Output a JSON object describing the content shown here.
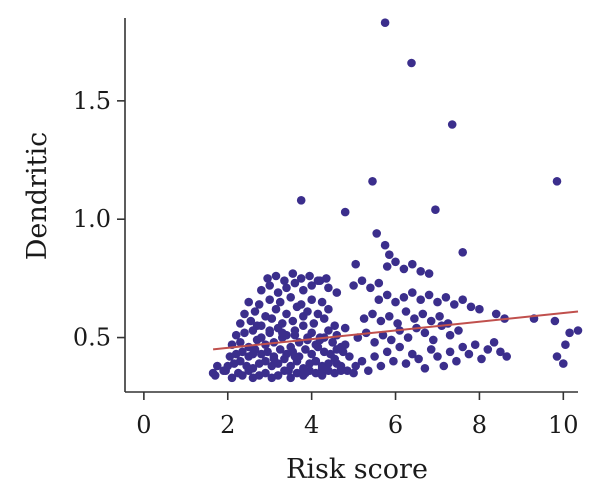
{
  "chart_data": {
    "type": "scatter",
    "xlabel": "Risk score",
    "ylabel": "Dendritic",
    "xlim": [
      -0.45,
      10.35
    ],
    "ylim": [
      0.27,
      1.85
    ],
    "x_ticks": [
      0,
      2,
      4,
      6,
      8,
      10
    ],
    "x_tick_labels": [
      "0",
      "2",
      "4",
      "6",
      "8",
      "10"
    ],
    "y_ticks": [
      0.5,
      1.0,
      1.5
    ],
    "y_tick_labels": [
      "0.5",
      "1.0",
      "1.5"
    ],
    "grid": false,
    "colors": {
      "points": "#3b2e8c",
      "trend_line": "#c0504d",
      "axis": "#333333"
    },
    "trend_line": {
      "x": [
        1.65,
        10.35
      ],
      "y": [
        0.45,
        0.61
      ]
    },
    "series": [
      {
        "x": [
          1.65,
          1.7,
          1.95,
          2.1,
          2.25,
          2.35,
          2.5,
          2.6,
          2.75,
          2.9,
          3.05,
          3.2,
          3.35,
          3.5,
          3.65,
          3.8,
          3.95,
          4.1,
          4.25,
          4.4,
          4.55,
          4.7,
          4.85,
          5.0,
          2.0,
          2.15,
          2.3,
          2.45,
          2.6,
          2.75,
          2.9,
          3.05,
          3.2,
          3.35,
          3.5,
          3.65,
          3.8,
          3.95,
          4.1,
          4.25,
          4.4,
          4.55,
          4.7,
          2.05,
          2.2,
          2.35,
          2.5,
          2.65,
          2.8,
          2.95,
          3.1,
          3.25,
          3.4,
          3.55,
          3.7,
          3.85,
          4.0,
          4.15,
          4.3,
          4.45,
          4.6,
          4.75,
          4.9,
          2.1,
          2.3,
          2.5,
          2.7,
          2.9,
          3.1,
          3.3,
          3.5,
          3.7,
          3.9,
          4.1,
          4.3,
          4.5,
          4.7,
          2.2,
          2.4,
          2.6,
          2.8,
          3.0,
          3.2,
          3.4,
          3.6,
          3.8,
          4.0,
          4.2,
          4.4,
          4.6,
          4.8,
          2.3,
          2.55,
          2.8,
          3.05,
          3.3,
          3.55,
          3.8,
          4.05,
          4.3,
          4.55,
          2.4,
          2.65,
          2.9,
          3.15,
          3.4,
          3.65,
          3.9,
          4.15,
          4.4,
          2.5,
          2.75,
          3.0,
          3.25,
          3.5,
          3.75,
          4.0,
          4.25,
          1.75,
          1.9,
          2.8,
          3.0,
          3.2,
          3.4,
          3.6,
          3.8,
          4.0,
          4.2,
          4.4,
          4.6,
          2.95,
          3.15,
          3.35,
          3.55,
          3.75,
          3.95,
          4.15,
          4.35,
          2.7,
          3.0,
          3.3,
          3.6,
          3.9,
          4.2,
          4.5,
          4.8,
          2.6,
          3.1,
          3.6,
          4.1,
          4.6,
          3.45,
          3.85,
          4.25,
          4.7,
          5.05,
          5.2,
          5.35,
          5.5,
          5.65,
          5.8,
          5.95,
          6.1,
          6.25,
          6.4,
          6.55,
          6.7,
          6.85,
          7.0,
          7.15,
          7.3,
          7.45,
          7.6,
          7.75,
          7.9,
          8.05,
          8.2,
          8.35,
          8.5,
          8.65,
          5.1,
          5.3,
          5.5,
          5.7,
          5.9,
          6.1,
          6.3,
          6.5,
          6.7,
          6.9,
          7.1,
          7.3,
          7.5,
          5.25,
          5.45,
          5.65,
          5.85,
          6.05,
          6.25,
          6.45,
          6.65,
          6.85,
          7.05,
          7.25,
          5.6,
          5.8,
          6.0,
          6.2,
          6.4,
          6.6,
          6.8,
          7.0,
          7.2,
          7.4,
          7.6,
          7.8,
          8.0,
          8.4,
          8.6,
          5.0,
          5.2,
          5.4,
          5.6,
          5.8,
          6.0,
          6.2,
          6.4,
          6.6,
          6.8,
          9.3,
          9.8,
          9.85,
          10.0,
          10.05,
          10.15,
          10.35,
          5.75,
          6.38,
          7.35,
          5.45,
          9.85,
          3.75,
          6.95,
          4.8,
          5.55,
          5.75,
          5.85,
          7.6,
          5.05
        ],
        "y": [
          0.35,
          0.34,
          0.36,
          0.33,
          0.35,
          0.34,
          0.36,
          0.33,
          0.34,
          0.35,
          0.33,
          0.34,
          0.36,
          0.33,
          0.35,
          0.34,
          0.36,
          0.35,
          0.34,
          0.36,
          0.35,
          0.37,
          0.36,
          0.35,
          0.38,
          0.39,
          0.4,
          0.38,
          0.37,
          0.39,
          0.4,
          0.38,
          0.39,
          0.41,
          0.38,
          0.4,
          0.37,
          0.39,
          0.4,
          0.38,
          0.39,
          0.41,
          0.38,
          0.42,
          0.43,
          0.44,
          0.42,
          0.45,
          0.43,
          0.44,
          0.42,
          0.45,
          0.43,
          0.44,
          0.42,
          0.45,
          0.43,
          0.46,
          0.44,
          0.43,
          0.45,
          0.44,
          0.42,
          0.47,
          0.48,
          0.46,
          0.49,
          0.47,
          0.48,
          0.5,
          0.46,
          0.48,
          0.49,
          0.47,
          0.5,
          0.48,
          0.46,
          0.51,
          0.52,
          0.53,
          0.5,
          0.52,
          0.54,
          0.51,
          0.53,
          0.55,
          0.52,
          0.5,
          0.53,
          0.51,
          0.54,
          0.56,
          0.57,
          0.55,
          0.58,
          0.56,
          0.57,
          0.59,
          0.56,
          0.58,
          0.55,
          0.6,
          0.61,
          0.59,
          0.62,
          0.6,
          0.63,
          0.61,
          0.6,
          0.62,
          0.65,
          0.64,
          0.66,
          0.65,
          0.67,
          0.64,
          0.66,
          0.65,
          0.38,
          0.36,
          0.7,
          0.72,
          0.69,
          0.71,
          0.73,
          0.7,
          0.72,
          0.74,
          0.71,
          0.69,
          0.75,
          0.76,
          0.74,
          0.77,
          0.75,
          0.76,
          0.74,
          0.75,
          0.55,
          0.53,
          0.52,
          0.51,
          0.5,
          0.49,
          0.48,
          0.47,
          0.43,
          0.41,
          0.42,
          0.4,
          0.39,
          0.36,
          0.35,
          0.37,
          0.36,
          0.38,
          0.4,
          0.36,
          0.42,
          0.38,
          0.44,
          0.4,
          0.46,
          0.39,
          0.43,
          0.41,
          0.37,
          0.45,
          0.42,
          0.38,
          0.44,
          0.4,
          0.46,
          0.43,
          0.47,
          0.41,
          0.45,
          0.48,
          0.44,
          0.42,
          0.5,
          0.52,
          0.48,
          0.51,
          0.49,
          0.53,
          0.5,
          0.54,
          0.52,
          0.49,
          0.55,
          0.51,
          0.53,
          0.58,
          0.6,
          0.57,
          0.59,
          0.56,
          0.61,
          0.58,
          0.6,
          0.57,
          0.59,
          0.56,
          0.66,
          0.68,
          0.65,
          0.67,
          0.69,
          0.66,
          0.68,
          0.65,
          0.67,
          0.64,
          0.66,
          0.63,
          0.62,
          0.6,
          0.58,
          0.72,
          0.74,
          0.71,
          0.73,
          0.8,
          0.82,
          0.79,
          0.81,
          0.78,
          0.77,
          0.58,
          0.57,
          0.42,
          0.39,
          0.47,
          0.52,
          0.53,
          1.83,
          1.66,
          1.4,
          1.16,
          1.16,
          1.08,
          1.04,
          1.03,
          0.94,
          0.89,
          0.85,
          0.86,
          0.81
        ]
      }
    ]
  }
}
